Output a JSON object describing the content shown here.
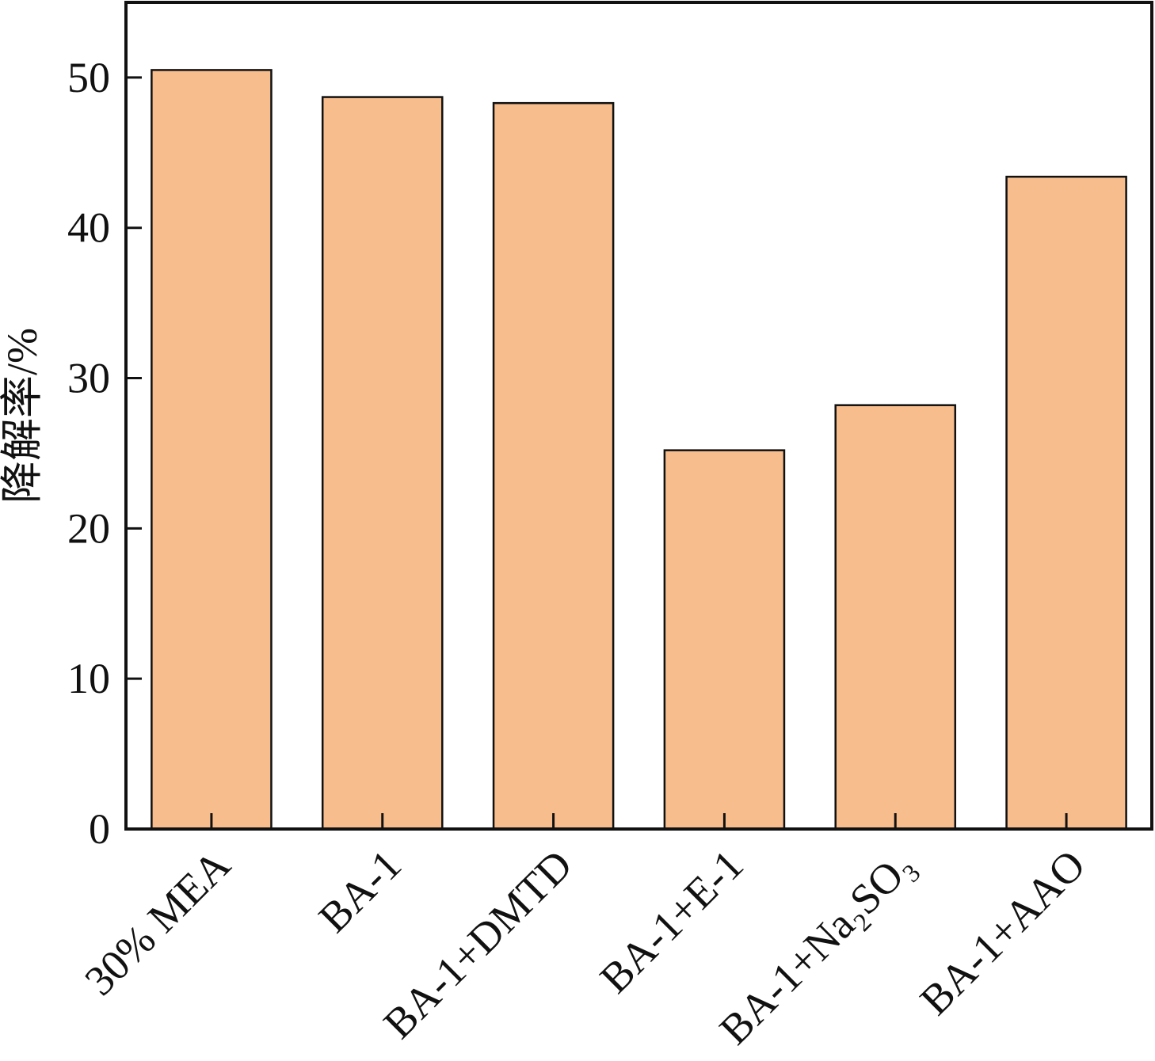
{
  "chart_data": {
    "type": "bar",
    "y_label": "降解率/%",
    "categories": [
      "30% MEA",
      "BA-1",
      "BA-1+DMTD",
      "BA-1+E-1",
      "BA-1+Na₂SO₃",
      "BA-1+AAO"
    ],
    "values": [
      50.5,
      48.7,
      48.3,
      25.2,
      28.2,
      43.4
    ],
    "color": "#f8bd8c",
    "ylim": [
      0,
      55
    ],
    "yticks": [
      0,
      10,
      20,
      30,
      40,
      50
    ],
    "grid": false
  }
}
